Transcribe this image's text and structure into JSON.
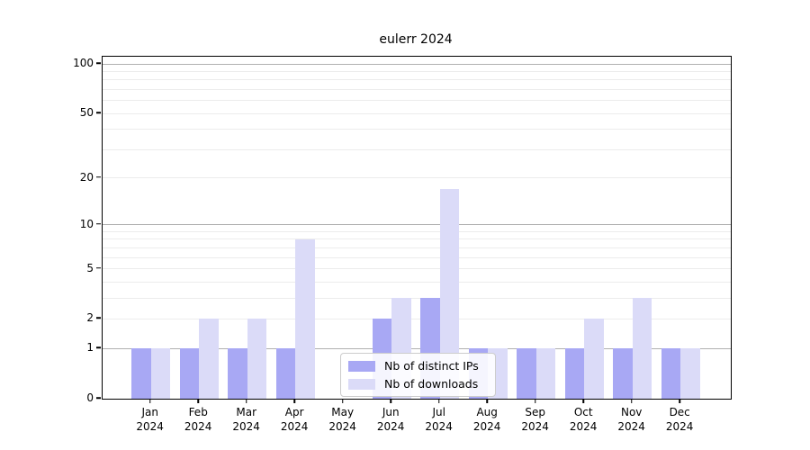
{
  "chart_data": {
    "type": "bar",
    "title": "eulerr 2024",
    "categories": [
      "Jan",
      "Feb",
      "Mar",
      "Apr",
      "May",
      "Jun",
      "Jul",
      "Aug",
      "Sep",
      "Oct",
      "Nov",
      "Dec"
    ],
    "xtick_year": "2024",
    "series": [
      {
        "name": "Nb of distinct IPs",
        "color": "#a8a8f4",
        "values": [
          1,
          1,
          1,
          1,
          0,
          2,
          3,
          1,
          1,
          1,
          1,
          1
        ]
      },
      {
        "name": "Nb of downloads",
        "color": "#dbdbf8",
        "values": [
          1,
          2,
          2,
          8,
          0,
          3,
          17,
          1,
          1,
          2,
          3,
          1
        ]
      }
    ],
    "scale": "log1p",
    "ylim": [
      0,
      100
    ],
    "ytick_labels": [
      "0",
      "1",
      "2",
      "5",
      "10",
      "20",
      "50",
      "100"
    ],
    "ytick_values": [
      0,
      1,
      2,
      5,
      10,
      20,
      50,
      100
    ],
    "grid_minor_values": [
      2,
      3,
      4,
      5,
      6,
      7,
      8,
      9,
      20,
      30,
      40,
      50,
      60,
      70,
      80,
      90
    ],
    "grid_major_values": [
      1,
      10,
      100
    ],
    "grid": true,
    "legend_position": "bottom-center",
    "colors": {
      "grid_minor": "#ececec",
      "grid_major": "#b0b0b0",
      "spine": "#000000",
      "legend_border": "#cccccc"
    }
  }
}
